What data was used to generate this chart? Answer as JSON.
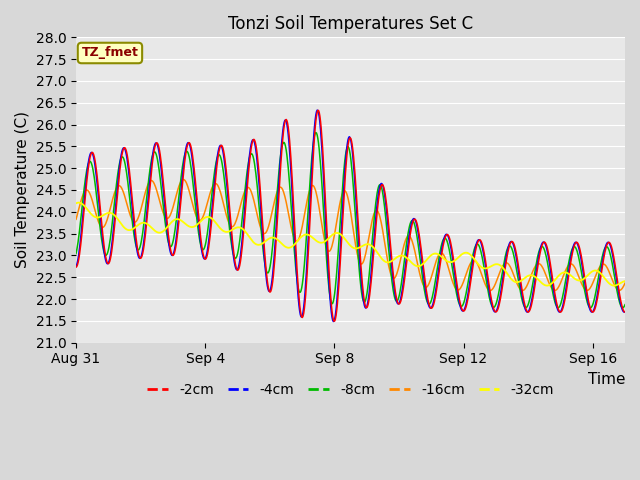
{
  "title": "Tonzi Soil Temperatures Set C",
  "ylabel": "Soil Temperature (C)",
  "xlabel": "Time",
  "ylim": [
    21.0,
    28.0
  ],
  "yticks": [
    21.0,
    21.5,
    22.0,
    22.5,
    23.0,
    23.5,
    24.0,
    24.5,
    25.0,
    25.5,
    26.0,
    26.5,
    27.0,
    27.5,
    28.0
  ],
  "xtick_labels": [
    "Aug 31",
    "Sep 4",
    "Sep 8",
    "Sep 12",
    "Sep 16"
  ],
  "xtick_pos": [
    0,
    4,
    8,
    12,
    16
  ],
  "total_days": 17,
  "colors": {
    "-2cm": "#FF0000",
    "-4cm": "#0000FF",
    "-8cm": "#00BB00",
    "-16cm": "#FF8800",
    "-32cm": "#FFFF00"
  },
  "legend_label": "TZ_fmet",
  "fig_bg": "#D8D8D8",
  "ax_bg": "#E8E8E8",
  "grid_color": "#FFFFFF",
  "title_fontsize": 12,
  "tick_fontsize": 10,
  "label_fontsize": 11
}
